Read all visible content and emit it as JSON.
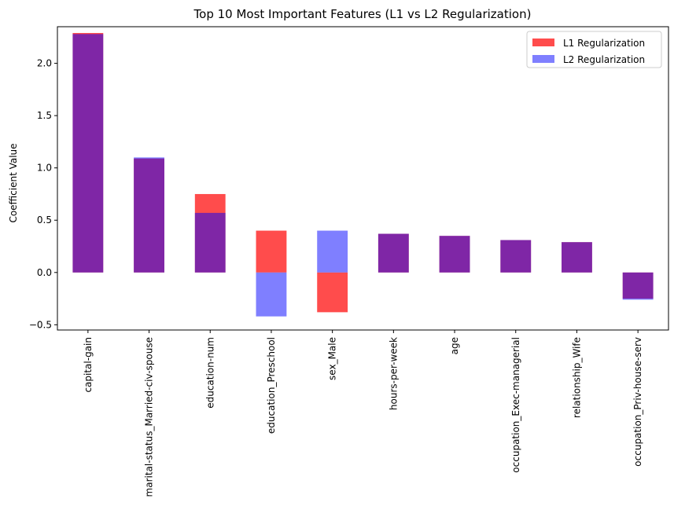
{
  "chart_data": {
    "type": "bar",
    "title": "Top 10 Most Important Features (L1 vs L2 Regularization)",
    "xlabel": "",
    "ylabel": "Coefficient Value",
    "ylim": [
      -0.55,
      2.35
    ],
    "yticks": [
      -0.5,
      0.0,
      0.5,
      1.0,
      1.5,
      2.0
    ],
    "ytick_labels": [
      "−0.5",
      "0.0",
      "0.5",
      "1.0",
      "1.5",
      "2.0"
    ],
    "grid": false,
    "legend_position": "top-right",
    "categories": [
      "capital-gain",
      "marital-status_Married-civ-spouse",
      "education-num",
      "education_Preschool",
      "sex_Male",
      "hours-per-week",
      "age",
      "occupation_Exec-managerial",
      "relationship_Wife",
      "occupation_Priv-house-serv"
    ],
    "series": [
      {
        "name": "L1 Regularization",
        "color": "#ff0000",
        "opacity": 0.7,
        "values": [
          2.29,
          1.09,
          0.75,
          0.4,
          -0.38,
          0.37,
          0.35,
          0.31,
          0.29,
          -0.25
        ]
      },
      {
        "name": "L2 Regularization",
        "color": "#0000ff",
        "opacity": 0.5,
        "values": [
          2.28,
          1.1,
          0.57,
          -0.42,
          0.4,
          0.37,
          0.35,
          0.31,
          0.29,
          -0.26
        ]
      }
    ]
  }
}
